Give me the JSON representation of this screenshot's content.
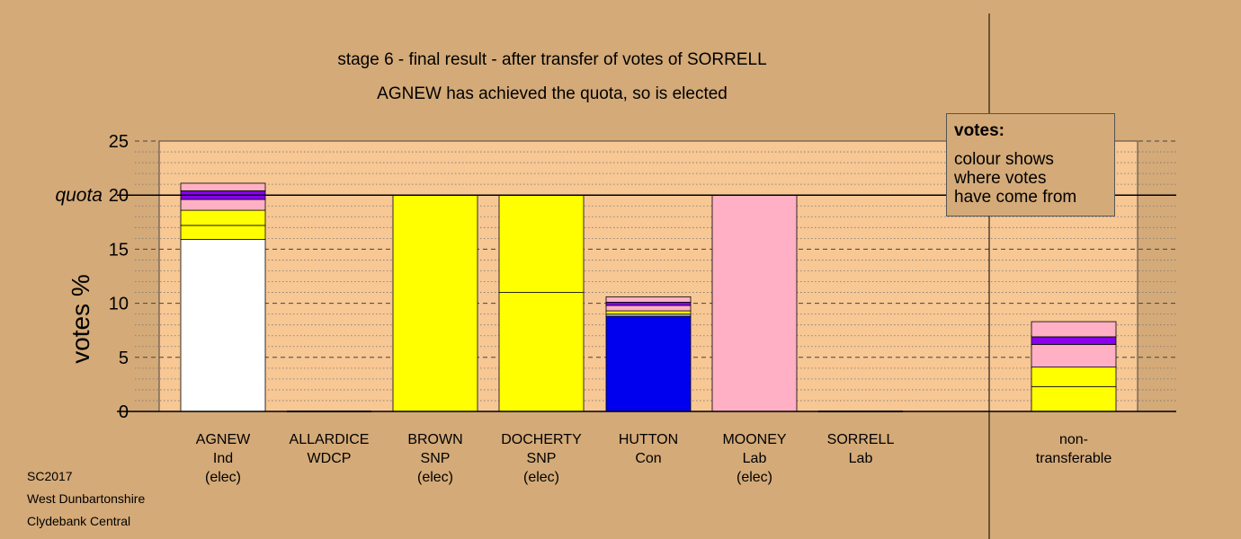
{
  "chart_data": {
    "type": "bar",
    "stacked": true,
    "title": "stage 6 - final result - after transfer of votes of SORRELL",
    "subtitle": "AGNEW has achieved the quota, so is elected",
    "ylabel": "votes %",
    "ylim": [
      0,
      25
    ],
    "yticks": [
      "0",
      "5",
      "10",
      "15",
      "20",
      "25"
    ],
    "quota": 20,
    "quota_label": "quota",
    "grid": "dashed-major, dotted-minor",
    "categories": [
      {
        "lines": [
          "AGNEW",
          "Ind",
          "(elec)"
        ]
      },
      {
        "lines": [
          "ALLARDICE",
          "WDCP"
        ]
      },
      {
        "lines": [
          "BROWN",
          "SNP",
          "(elec)"
        ]
      },
      {
        "lines": [
          "DOCHERTY",
          "SNP",
          "(elec)"
        ]
      },
      {
        "lines": [
          "HUTTON",
          "Con"
        ]
      },
      {
        "lines": [
          "MOONEY",
          "Lab",
          "(elec)"
        ]
      },
      {
        "lines": [
          "SORRELL",
          "Lab"
        ]
      },
      {
        "lines": [
          "non-",
          "transferable"
        ]
      }
    ],
    "stacks": [
      [
        {
          "value": 15.9,
          "color": "#ffffff"
        },
        {
          "value": 1.3,
          "color": "#ffff00"
        },
        {
          "value": 1.4,
          "color": "#ffff00"
        },
        {
          "value": 1.0,
          "color": "#ffb0c4"
        },
        {
          "value": 0.8,
          "color": "#8800ee"
        },
        {
          "value": 0.7,
          "color": "#ffb0c4"
        }
      ],
      [],
      [
        {
          "value": 20.0,
          "color": "#ffff00"
        }
      ],
      [
        {
          "value": 11.0,
          "color": "#ffff00"
        },
        {
          "value": 9.0,
          "color": "#ffff00"
        }
      ],
      [
        {
          "value": 8.8,
          "color": "#0000ee"
        },
        {
          "value": 0.2,
          "color": "#bbbbbb"
        },
        {
          "value": 0.3,
          "color": "#ffff00"
        },
        {
          "value": 0.5,
          "color": "#ffb0c4"
        },
        {
          "value": 0.3,
          "color": "#8800ee"
        },
        {
          "value": 0.5,
          "color": "#ffb0c4"
        }
      ],
      [
        {
          "value": 20.0,
          "color": "#ffb0c4"
        }
      ],
      [],
      [
        {
          "value": 2.3,
          "color": "#ffff00"
        },
        {
          "value": 1.8,
          "color": "#ffff00"
        },
        {
          "value": 2.1,
          "color": "#ffb0c4"
        },
        {
          "value": 0.7,
          "color": "#8800ee"
        },
        {
          "value": 1.4,
          "color": "#ffb0c4"
        }
      ]
    ]
  },
  "legend": {
    "title": "votes:",
    "lines": [
      "colour shows",
      "where votes",
      "have come from"
    ]
  },
  "footer": {
    "lines": [
      "SC2017",
      "West Dunbartonshire",
      "Clydebank Central"
    ]
  },
  "colors": {
    "background": "#d4aa78",
    "plot_area": "#f7c794"
  }
}
